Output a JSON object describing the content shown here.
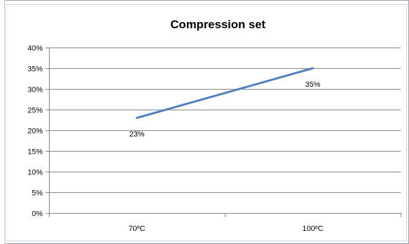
{
  "chart_data": {
    "type": "line",
    "title": "Compression set",
    "xlabel": "",
    "ylabel": "",
    "categories": [
      "70ºC",
      "100ºC"
    ],
    "series": [
      {
        "values": [
          23,
          35
        ],
        "color": "#4f81bd"
      }
    ],
    "data_labels": [
      "23%",
      "35%"
    ],
    "y_ticks": [
      0,
      5,
      10,
      15,
      20,
      25,
      30,
      35,
      40
    ],
    "y_tick_labels": [
      "0%",
      "5%",
      "10%",
      "15%",
      "20%",
      "25%",
      "30%",
      "35%",
      "40%"
    ],
    "ylim": [
      0,
      40
    ],
    "grid": true,
    "legend": "none",
    "gridline_color": "#868686"
  }
}
